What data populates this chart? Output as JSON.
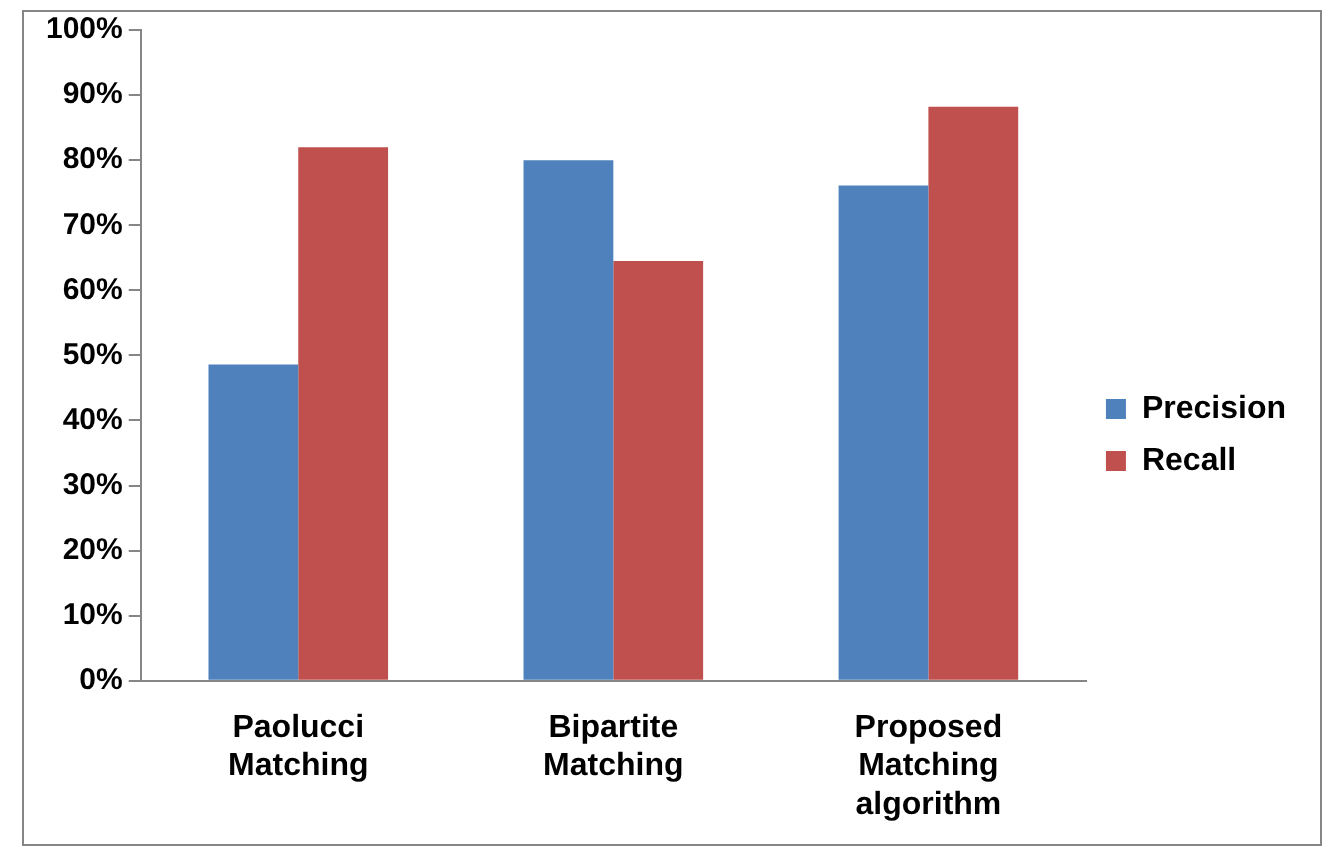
{
  "chart_data": {
    "type": "bar",
    "categories": [
      "Paolucci Matching",
      "Bipartite Matching",
      "Proposed Matching algorithm"
    ],
    "series": [
      {
        "name": "Precision",
        "color": "#4f81bd",
        "values": [
          48.6,
          80,
          76.1
        ]
      },
      {
        "name": "Recall",
        "color": "#c0504d",
        "values": [
          82,
          64.5,
          88.2
        ]
      }
    ],
    "ylim": [
      0,
      100
    ],
    "yticks": [
      {
        "value": 0,
        "label": "0%"
      },
      {
        "value": 10,
        "label": "10%"
      },
      {
        "value": 20,
        "label": "20%"
      },
      {
        "value": 30,
        "label": "30%"
      },
      {
        "value": 40,
        "label": "40%"
      },
      {
        "value": 50,
        "label": "50%"
      },
      {
        "value": 60,
        "label": "60%"
      },
      {
        "value": 70,
        "label": "70%"
      },
      {
        "value": 80,
        "label": "80%"
      },
      {
        "value": 90,
        "label": "90%"
      },
      {
        "value": 100,
        "label": "100%"
      }
    ],
    "grid": false,
    "legend": "right"
  }
}
